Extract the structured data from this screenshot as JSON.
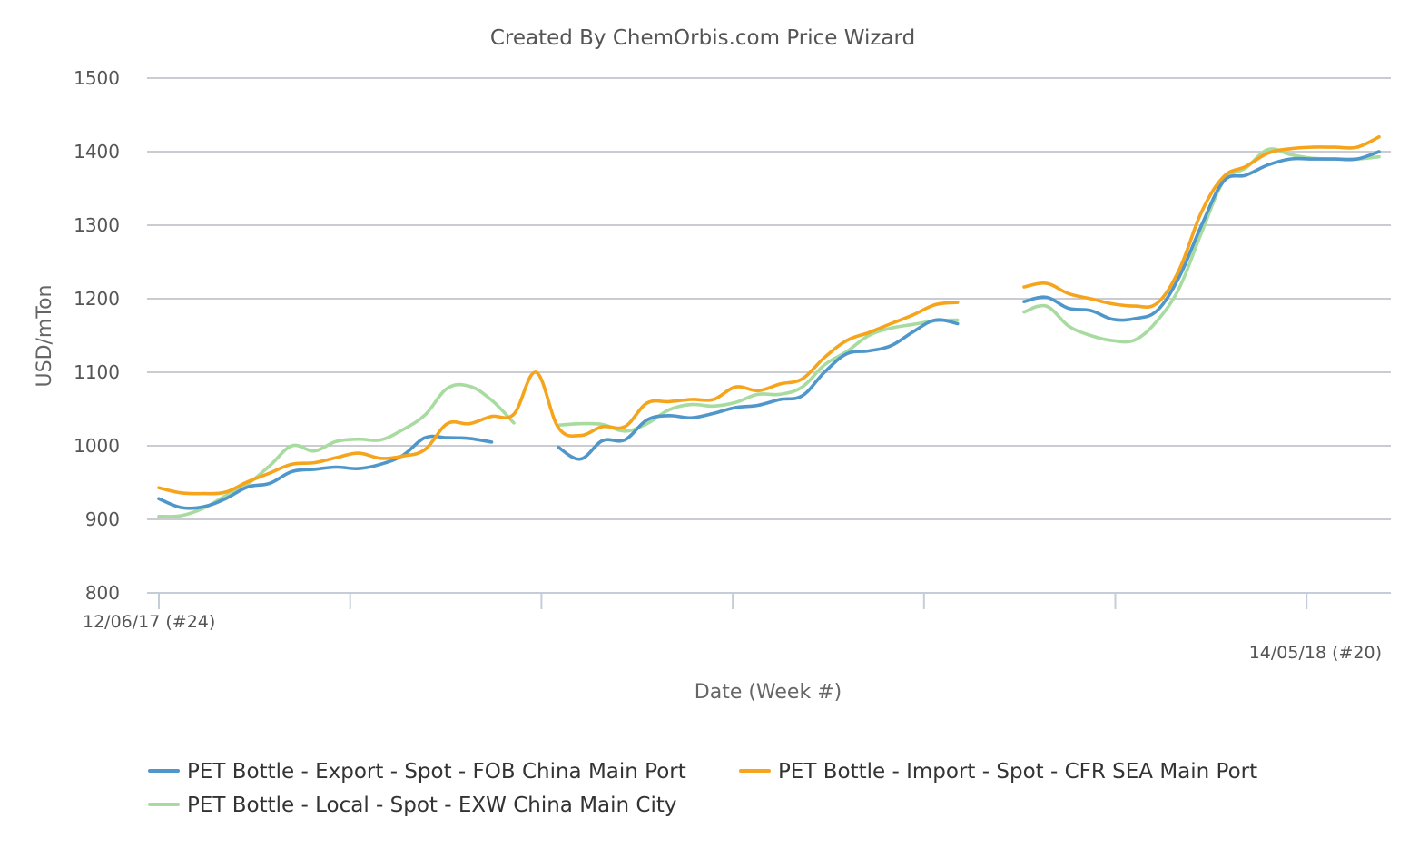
{
  "chart_data": {
    "type": "line",
    "title": "Created By ChemOrbis.com Price Wizard",
    "xlabel": "Date (Week #)",
    "ylabel": "USD/mTon",
    "ylim": [
      800,
      1500
    ],
    "yticks": [
      800,
      900,
      1000,
      1100,
      1200,
      1300,
      1400,
      1500
    ],
    "x_start_label": "12/06/17 (#24)",
    "x_end_label": "14/05/18 (#20)",
    "grid": true,
    "legend_position": "bottom",
    "series": [
      {
        "name": "PET Bottle - Export - Spot - FOB China Main Port",
        "color": "#4f97cb",
        "values": [
          928,
          916,
          917,
          928,
          944,
          949,
          965,
          968,
          971,
          969,
          975,
          987,
          1011,
          1011,
          1010,
          1005,
          null,
          null,
          998,
          982,
          1007,
          1008,
          1035,
          1041,
          1038,
          1044,
          1052,
          1055,
          1063,
          1068,
          1100,
          1125,
          1129,
          1136,
          1155,
          1171,
          1166,
          null,
          null,
          1196,
          1202,
          1187,
          1184,
          1172,
          1173,
          1184,
          1230,
          1300,
          1360,
          1368,
          1382,
          1390,
          1390,
          1390,
          1390,
          1400
        ]
      },
      {
        "name": "PET Bottle - Import - Spot - CFR SEA Main Port",
        "color": "#f5a41c",
        "values": [
          943,
          936,
          935,
          937,
          951,
          963,
          975,
          977,
          984,
          990,
          983,
          986,
          995,
          1030,
          1030,
          1040,
          1043,
          1100,
          1025,
          1014,
          1026,
          1026,
          1058,
          1060,
          1063,
          1063,
          1080,
          1075,
          1084,
          1091,
          1120,
          1143,
          1154,
          1166,
          1178,
          1192,
          1195,
          null,
          null,
          1216,
          1221,
          1207,
          1200,
          1193,
          1190,
          1194,
          1240,
          1318,
          1366,
          1380,
          1398,
          1404,
          1406,
          1406,
          1406,
          1420
        ]
      },
      {
        "name": "PET Bottle - Local - Spot - EXW China Main City",
        "color": "#a8dba0",
        "values": [
          904,
          905,
          915,
          932,
          948,
          973,
          1000,
          993,
          1006,
          1009,
          1008,
          1022,
          1042,
          1078,
          1081,
          1062,
          1031,
          null,
          1028,
          1030,
          1029,
          1020,
          1030,
          1049,
          1056,
          1054,
          1059,
          1070,
          1070,
          1080,
          1110,
          1128,
          1150,
          1160,
          1165,
          1170,
          1171,
          null,
          null,
          1182,
          1190,
          1163,
          1150,
          1143,
          1144,
          1170,
          1215,
          1290,
          1360,
          1378,
          1403,
          1396,
          1391,
          1390,
          1390,
          1393
        ]
      }
    ]
  }
}
